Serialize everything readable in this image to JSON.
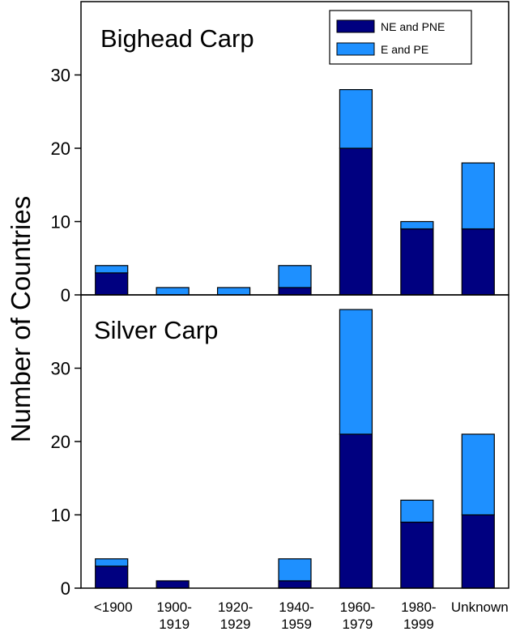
{
  "chart_data": {
    "type": "bar",
    "stacked": true,
    "ylabel": "Number of Countries",
    "categories": [
      [
        "<1900"
      ],
      [
        "1900-",
        "1919"
      ],
      [
        "1920-",
        "1929"
      ],
      [
        "1940-",
        "1959"
      ],
      [
        "1960-",
        "1979"
      ],
      [
        "1980-",
        "1999"
      ],
      [
        "Unknown"
      ]
    ],
    "legend": {
      "placement": "top-right",
      "entries": [
        "NE and PNE",
        "E and PE"
      ]
    },
    "colors": {
      "ne_pne": "#000080",
      "e_pe": "#1e90ff"
    },
    "panels": [
      {
        "title": "Bighead Carp",
        "ylim": [
          0,
          40
        ],
        "yticks": [
          0,
          10,
          20,
          30
        ],
        "series": [
          {
            "name": "NE and PNE",
            "values": [
              3,
              0,
              0,
              1,
              20,
              9,
              9
            ]
          },
          {
            "name": "E and PE",
            "values": [
              1,
              1,
              1,
              3,
              8,
              1,
              9
            ]
          }
        ]
      },
      {
        "title": "Silver Carp",
        "ylim": [
          0,
          40
        ],
        "yticks": [
          0,
          10,
          20,
          30
        ],
        "series": [
          {
            "name": "NE and PNE",
            "values": [
              3,
              1,
              0,
              1,
              21,
              9,
              10
            ]
          },
          {
            "name": "E and PE",
            "values": [
              1,
              0,
              0,
              3,
              17,
              3,
              11
            ]
          }
        ]
      }
    ]
  }
}
